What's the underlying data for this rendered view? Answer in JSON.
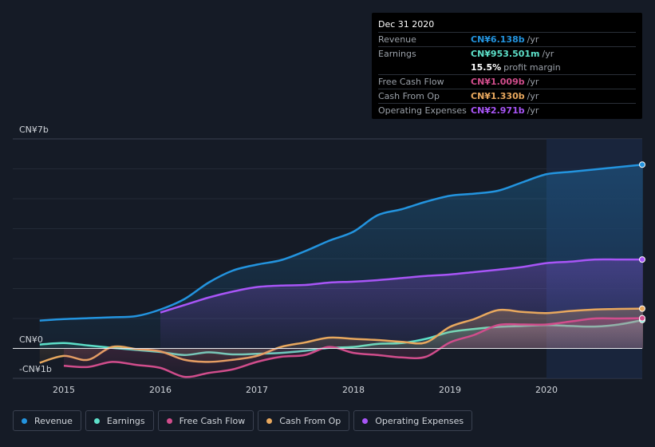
{
  "tooltip": {
    "date": "Dec 31 2020",
    "rows": [
      {
        "label": "Revenue",
        "value": "CN¥6.138b",
        "unit": "/yr",
        "color": "#2394df"
      },
      {
        "label": "Earnings",
        "value": "CN¥953.501m",
        "unit": "/yr",
        "color": "#5de0c9"
      },
      {
        "label": "",
        "value": "15.5%",
        "unit": "profit margin",
        "color": "#ffffff"
      },
      {
        "label": "Free Cash Flow",
        "value": "CN¥1.009b",
        "unit": "/yr",
        "color": "#d14d8c"
      },
      {
        "label": "Cash From Op",
        "value": "CN¥1.330b",
        "unit": "/yr",
        "color": "#e8a85e"
      },
      {
        "label": "Operating Expenses",
        "value": "CN¥2.971b",
        "unit": "/yr",
        "color": "#a855f7"
      }
    ]
  },
  "legend": [
    {
      "label": "Revenue",
      "color": "#2394df"
    },
    {
      "label": "Earnings",
      "color": "#5de0c9"
    },
    {
      "label": "Free Cash Flow",
      "color": "#d14d8c"
    },
    {
      "label": "Cash From Op",
      "color": "#e8a85e"
    },
    {
      "label": "Operating Expenses",
      "color": "#a855f7"
    }
  ],
  "chart_data": {
    "type": "area",
    "title": "",
    "ylabel": "",
    "xlabel": "",
    "unit": "CN¥ billions",
    "ylim": [
      -1,
      7
    ],
    "xlim": [
      2014.7,
      2021.0
    ],
    "y_labels": {
      "top": "CN¥7b",
      "zero": "CN¥0",
      "bottom": "-CN¥1b"
    },
    "x_ticks": [
      {
        "value": 2015,
        "label": "2015"
      },
      {
        "value": 2016,
        "label": "2016"
      },
      {
        "value": 2017,
        "label": "2017"
      },
      {
        "value": 2018,
        "label": "2018"
      },
      {
        "value": 2019,
        "label": "2019"
      },
      {
        "value": 2020,
        "label": "2020"
      }
    ],
    "highlight_start": 2020,
    "series": [
      {
        "name": "Revenue",
        "color": "#2394df",
        "fill": true,
        "x": [
          2014.75,
          2015.0,
          2015.25,
          2015.5,
          2015.75,
          2016.0,
          2016.25,
          2016.5,
          2016.75,
          2017.0,
          2017.25,
          2017.5,
          2017.75,
          2018.0,
          2018.25,
          2018.5,
          2018.75,
          2019.0,
          2019.25,
          2019.5,
          2019.75,
          2020.0,
          2020.25,
          2020.5,
          2020.75,
          2021.0
        ],
        "y": [
          0.93,
          0.98,
          1.01,
          1.04,
          1.08,
          1.3,
          1.65,
          2.2,
          2.6,
          2.8,
          2.95,
          3.25,
          3.6,
          3.9,
          4.45,
          4.65,
          4.9,
          5.1,
          5.17,
          5.27,
          5.55,
          5.82,
          5.9,
          5.98,
          6.06,
          6.14
        ]
      },
      {
        "name": "Operating Expenses",
        "color": "#a855f7",
        "fill": true,
        "x": [
          2016.0,
          2016.25,
          2016.5,
          2016.75,
          2017.0,
          2017.25,
          2017.5,
          2017.75,
          2018.0,
          2018.25,
          2018.5,
          2018.75,
          2019.0,
          2019.25,
          2019.5,
          2019.75,
          2020.0,
          2020.25,
          2020.5,
          2020.75,
          2021.0
        ],
        "y": [
          1.2,
          1.45,
          1.7,
          1.9,
          2.05,
          2.1,
          2.12,
          2.2,
          2.23,
          2.28,
          2.35,
          2.42,
          2.47,
          2.55,
          2.63,
          2.72,
          2.85,
          2.9,
          2.97,
          2.97,
          2.97
        ]
      },
      {
        "name": "Earnings",
        "color": "#5de0c9",
        "fill": true,
        "x": [
          2014.75,
          2015.0,
          2015.25,
          2015.5,
          2015.75,
          2016.0,
          2016.25,
          2016.5,
          2016.75,
          2017.0,
          2017.25,
          2017.5,
          2017.75,
          2018.0,
          2018.25,
          2018.5,
          2018.75,
          2019.0,
          2019.25,
          2019.5,
          2019.75,
          2020.0,
          2020.25,
          2020.5,
          2020.75,
          2021.0
        ],
        "y": [
          0.13,
          0.18,
          0.1,
          0.02,
          -0.05,
          -0.12,
          -0.22,
          -0.13,
          -0.2,
          -0.18,
          -0.15,
          -0.08,
          0.02,
          0.05,
          0.15,
          0.18,
          0.32,
          0.55,
          0.65,
          0.72,
          0.75,
          0.78,
          0.75,
          0.73,
          0.8,
          0.95
        ]
      },
      {
        "name": "Cash From Op",
        "color": "#e8a85e",
        "fill": true,
        "x": [
          2014.75,
          2015.0,
          2015.25,
          2015.5,
          2015.75,
          2016.0,
          2016.25,
          2016.5,
          2016.75,
          2017.0,
          2017.25,
          2017.5,
          2017.75,
          2018.0,
          2018.25,
          2018.5,
          2018.75,
          2019.0,
          2019.25,
          2019.5,
          2019.75,
          2020.0,
          2020.25,
          2020.5,
          2020.75,
          2021.0
        ],
        "y": [
          -0.48,
          -0.25,
          -0.38,
          0.05,
          -0.02,
          -0.1,
          -0.38,
          -0.45,
          -0.38,
          -0.25,
          0.05,
          0.2,
          0.36,
          0.32,
          0.28,
          0.22,
          0.2,
          0.72,
          0.98,
          1.28,
          1.22,
          1.18,
          1.25,
          1.3,
          1.32,
          1.33
        ]
      },
      {
        "name": "Free Cash Flow",
        "color": "#d14d8c",
        "fill": true,
        "x": [
          2015.0,
          2015.25,
          2015.5,
          2015.75,
          2016.0,
          2016.25,
          2016.5,
          2016.75,
          2017.0,
          2017.25,
          2017.5,
          2017.75,
          2018.0,
          2018.25,
          2018.5,
          2018.75,
          2019.0,
          2019.25,
          2019.5,
          2019.75,
          2020.0,
          2020.25,
          2020.5,
          2020.75,
          2021.0
        ],
        "y": [
          -0.58,
          -0.62,
          -0.45,
          -0.55,
          -0.65,
          -0.95,
          -0.82,
          -0.7,
          -0.45,
          -0.28,
          -0.22,
          0.05,
          -0.15,
          -0.22,
          -0.3,
          -0.28,
          0.2,
          0.45,
          0.78,
          0.8,
          0.8,
          0.9,
          1.0,
          1.0,
          1.01
        ]
      }
    ]
  }
}
